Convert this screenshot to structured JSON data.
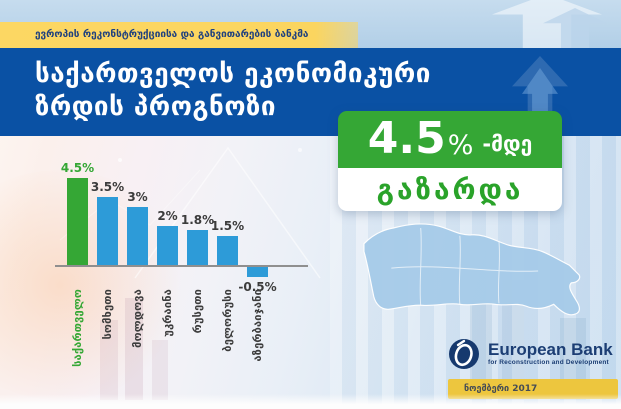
{
  "top_banner": {
    "text": "ევროპის რეკონსტრუქციისა და განვითარების ბანკმა"
  },
  "header": {
    "title_line1": "საქართველოს ეკონომიკური",
    "title_line2": "ზრდის პროგნოზი"
  },
  "highlight_badge": {
    "value": "4.5",
    "percent_sign": "%",
    "suffix": "-მდე",
    "caption": "გაზარდა"
  },
  "chart_data": {
    "type": "bar",
    "title": "საქართველოს ეკონომიკური ზრდის პროგნოზი",
    "categories": [
      "საქართველო",
      "სომხეთი",
      "მოლდოვა",
      "უკრაინა",
      "რუსეთი",
      "ბელორუსი",
      "აზერბაიჯანი"
    ],
    "values": [
      4.5,
      3.5,
      3,
      2,
      1.8,
      1.5,
      -0.5
    ],
    "value_labels": [
      "4.5%",
      "3.5%",
      "3%",
      "2%",
      "1.8%",
      "1.5%",
      "-0.5%"
    ],
    "highlight_index": 0,
    "highlight_color": "#35a735",
    "bar_color": "#2d9bd8",
    "label_color": "#3c3c3c",
    "xlabel": "",
    "ylabel": "",
    "ylim": [
      -0.5,
      4.5
    ],
    "grid": false,
    "legend": false
  },
  "logo": {
    "title": "European Bank",
    "subtitle": "for Reconstruction and Development"
  },
  "date_badge": {
    "text": "ნოემბერი 2017"
  },
  "colors": {
    "header_blue": "#0a51a4",
    "banner_yellow": "#fbd55f",
    "accent_green": "#35a735",
    "bar_blue": "#2d9bd8",
    "date_gold": "#edc63e",
    "navy_text": "#1c3e74",
    "map_blue": "#a6cbe9"
  }
}
